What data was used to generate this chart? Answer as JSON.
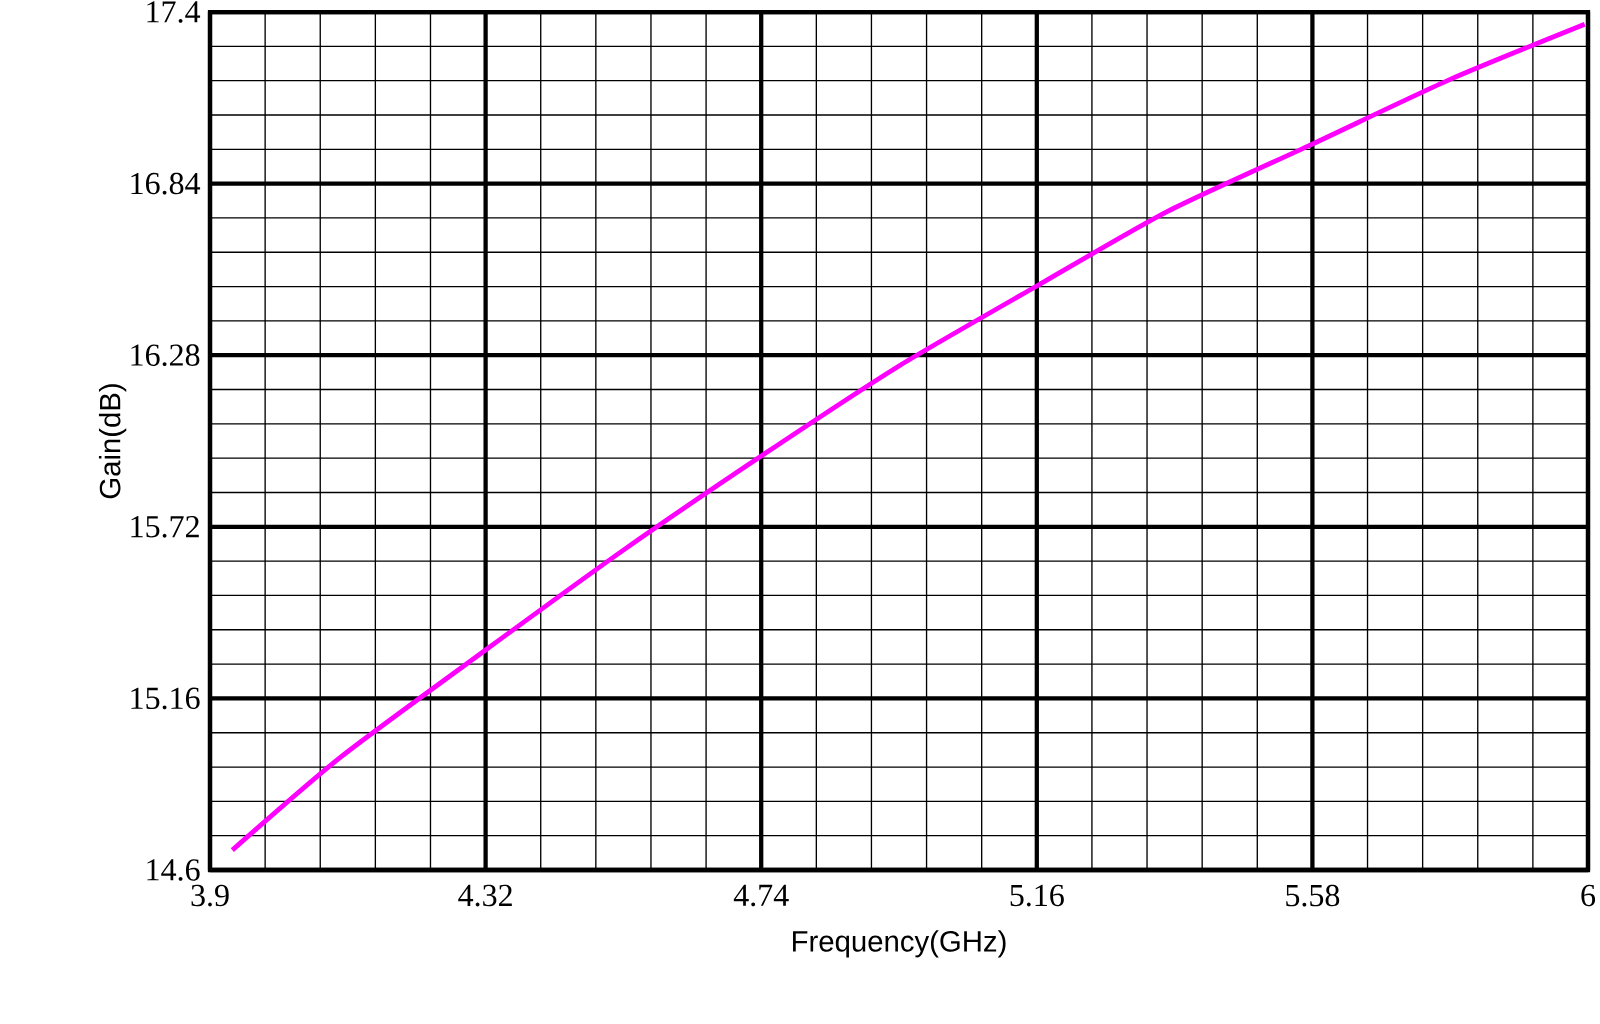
{
  "chart_data": {
    "type": "line",
    "xlabel": "Frequency(GHz)",
    "ylabel": "Gain(dB)",
    "xlim": [
      3.9,
      6
    ],
    "ylim": [
      14.6,
      17.4
    ],
    "xticks": [
      3.9,
      4.32,
      4.74,
      5.16,
      5.58,
      6
    ],
    "yticks": [
      14.6,
      15.16,
      15.72,
      16.28,
      16.84,
      17.4
    ],
    "grid": true,
    "series": [
      {
        "color": "#ff00ff",
        "x": [
          3.934,
          4.1,
          4.32,
          4.53,
          4.74,
          4.95,
          5.16,
          5.36,
          5.58,
          5.79,
          5.995
        ],
        "values": [
          14.665,
          14.97,
          15.318,
          15.644,
          15.951,
          16.245,
          16.506,
          16.75,
          16.969,
          17.18,
          17.36
        ]
      }
    ]
  }
}
